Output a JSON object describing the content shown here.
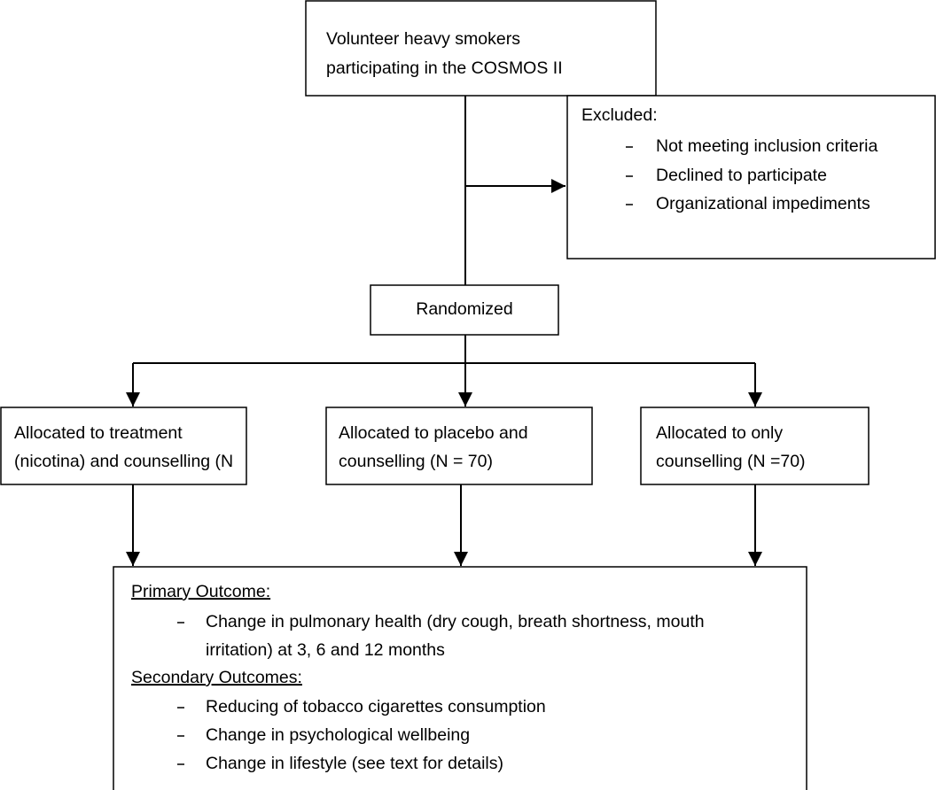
{
  "nodes": [
    {
      "lines": [
        "Volunteer heavy smokers",
        "participating in the COSMOS II"
      ]
    },
    {
      "title": "Excluded:",
      "items": [
        "Not meeting inclusion criteria",
        "Declined to participate",
        "Organizational impediments"
      ]
    },
    {
      "lines": [
        "Randomized"
      ]
    },
    {
      "lines": [
        "Allocated to treatment",
        "(nicotina) and counselling (N"
      ]
    },
    {
      "lines": [
        "Allocated to placebo and",
        "counselling (N = 70)"
      ]
    },
    {
      "lines": [
        "Allocated to only",
        "counselling (N =70)"
      ]
    },
    {
      "sections": [
        {
          "heading": "Primary Outcome:",
          "items": [
            [
              "Change in pulmonary health (dry cough, breath shortness, mouth",
              "irritation) at 3, 6 and 12 months"
            ]
          ]
        },
        {
          "heading": "Secondary Outcomes:",
          "items": [
            [
              "Reducing of tobacco cigarettes consumption"
            ],
            [
              "Change in psychological wellbeing"
            ],
            [
              "Change in lifestyle (see text for details)"
            ]
          ]
        }
      ]
    }
  ]
}
